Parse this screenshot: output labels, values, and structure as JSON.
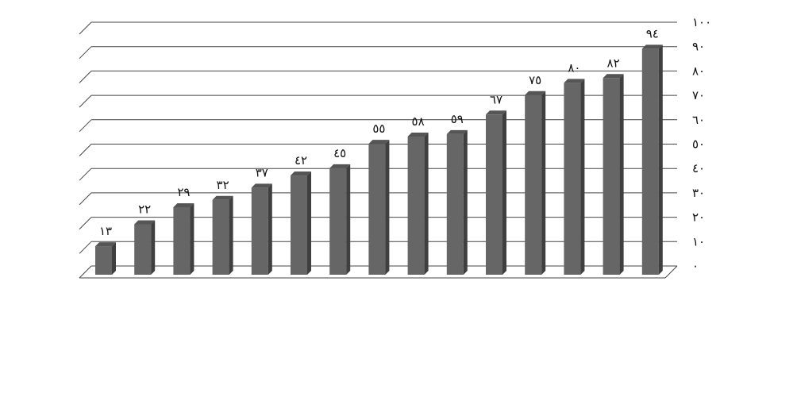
{
  "chart_data": {
    "type": "bar",
    "title": "",
    "xlabel": "",
    "ylabel": "",
    "ylim": [
      0,
      100
    ],
    "grid": true,
    "three_d": true,
    "y_axis_side": "right",
    "bar_color": "#666666",
    "bar_top_color": "#555555",
    "bar_side_color": "#3f3f3f",
    "values": [
      13,
      22,
      29,
      32,
      37,
      42,
      45,
      55,
      58,
      59,
      67,
      75,
      80,
      82,
      94
    ],
    "data_labels": [
      "١٣",
      "٢٢",
      "٢٩",
      "٣٢",
      "٣٧",
      "٤٢",
      "٤٥",
      "٥٥",
      "٥٨",
      "٥٩",
      "٦٧",
      "٧٥",
      "٨٠",
      "٨٢",
      "٩٤"
    ],
    "y_ticks": [
      0,
      10,
      20,
      30,
      40,
      50,
      60,
      70,
      80,
      90,
      100
    ],
    "y_tick_labels": [
      "٠",
      "١٠",
      "٢٠",
      "٣٠",
      "٤٠",
      "٥٠",
      "٦٠",
      "٧٠",
      "٨٠",
      "٩٠",
      "١٠٠"
    ]
  }
}
